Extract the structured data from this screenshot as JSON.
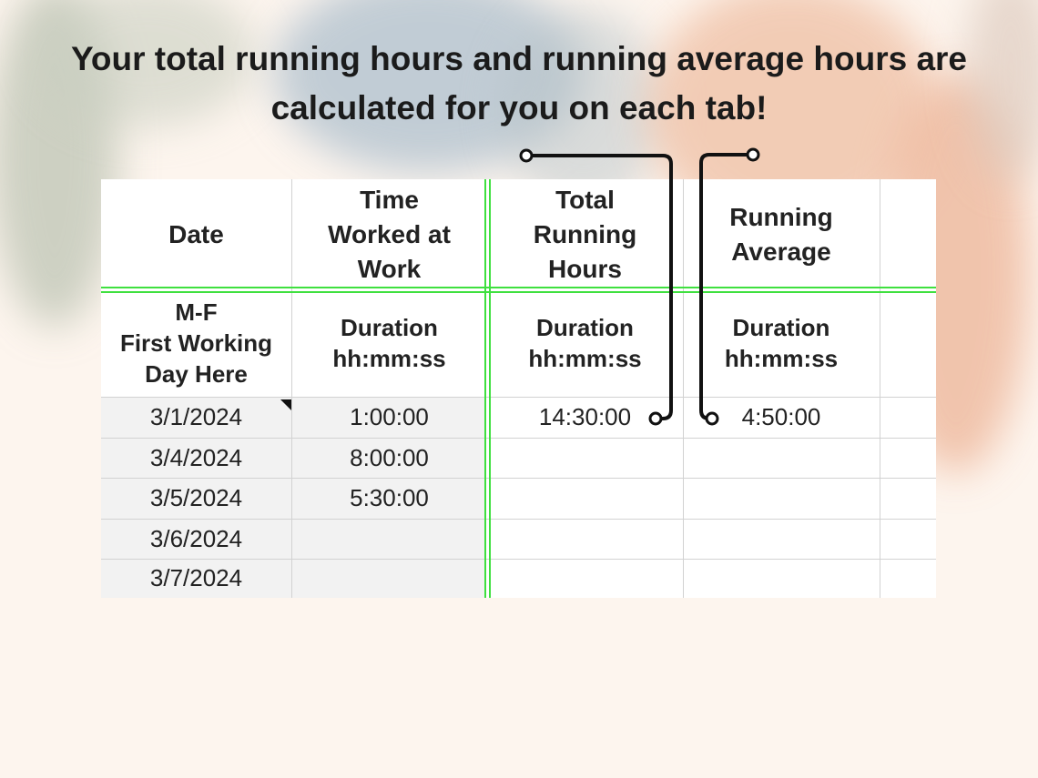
{
  "title": [
    "Your total running hours and running average hours are",
    "calculated for you on each tab!"
  ],
  "table": {
    "header": [
      [
        "Date"
      ],
      [
        "Time",
        "Worked at",
        "Work"
      ],
      [
        "Total",
        "Running",
        "Hours"
      ],
      [
        "Running",
        "Average"
      ]
    ],
    "subheader": [
      [
        "M-F",
        "First Working",
        "Day Here"
      ],
      [
        "Duration",
        "hh:mm:ss"
      ],
      [
        "Duration",
        "hh:mm:ss"
      ],
      [
        "Duration",
        "hh:mm:ss"
      ]
    ],
    "rows": [
      [
        "3/1/2024",
        "1:00:00",
        "14:30:00",
        "4:50:00"
      ],
      [
        "3/4/2024",
        "8:00:00"
      ],
      [
        "3/5/2024",
        "5:30:00"
      ],
      [
        "3/6/2024"
      ],
      [
        "3/7/2024"
      ]
    ]
  }
}
